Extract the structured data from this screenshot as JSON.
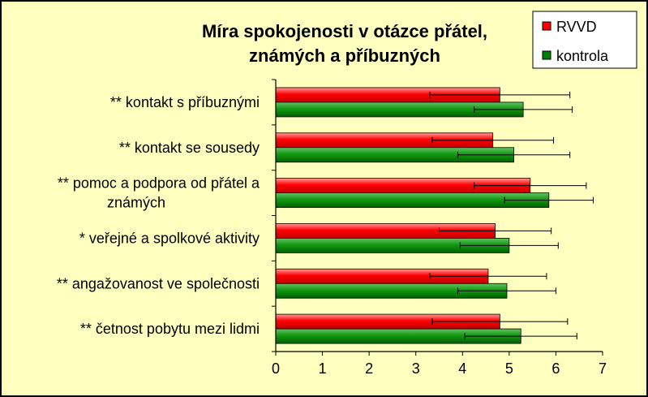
{
  "chart_data": {
    "type": "bar",
    "orientation": "horizontal",
    "title_lines": [
      "Míra spokojenosti v otázce přátel,",
      "známých a příbuzných"
    ],
    "categories": [
      "** kontakt s příbuznými",
      "** kontakt se sousedy",
      "** pomoc a podpora od přátel a známých",
      "* veřejné a spolkové aktivity",
      "** angažovanost ve společnosti",
      "** četnost pobytu mezi lidmi"
    ],
    "category_lines": [
      [
        "** kontakt s příbuznými"
      ],
      [
        "** kontakt se sousedy"
      ],
      [
        "** pomoc a podpora od přátel a",
        "známých"
      ],
      [
        "* veřejné a spolkové aktivity"
      ],
      [
        "** angažovanost ve společnosti"
      ],
      [
        "** četnost pobytu mezi lidmi"
      ]
    ],
    "series": [
      {
        "name": "RVVD",
        "color": "#ff0000",
        "values": [
          4.8,
          4.65,
          5.45,
          4.7,
          4.55,
          4.8
        ],
        "error": [
          1.5,
          1.3,
          1.2,
          1.2,
          1.25,
          1.45
        ]
      },
      {
        "name": "kontrola",
        "color": "#008000",
        "values": [
          5.3,
          5.1,
          5.85,
          5.0,
          4.95,
          5.25
        ],
        "error": [
          1.05,
          1.2,
          0.95,
          1.05,
          1.05,
          1.2
        ]
      }
    ],
    "xlim": [
      0,
      7
    ],
    "xticks": [
      "0",
      "1",
      "2",
      "3",
      "4",
      "5",
      "6",
      "7"
    ],
    "grid": false,
    "legend_position": "top-right"
  }
}
